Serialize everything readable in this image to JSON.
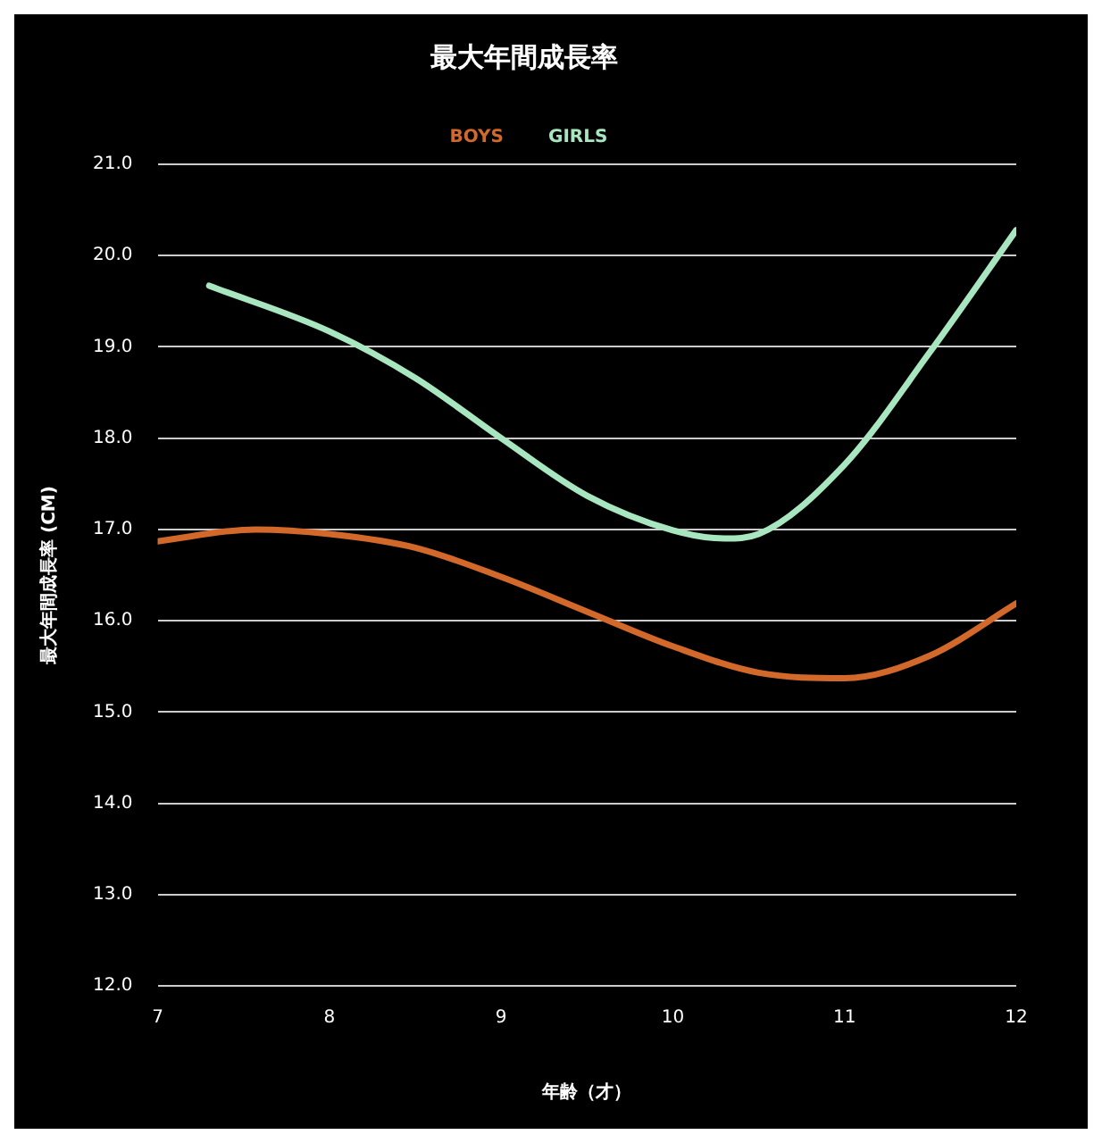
{
  "chart_data": {
    "type": "line",
    "title": "最大年間成長率",
    "xlabel": "年齢（才）",
    "ylabel": "最大年間成長率 (CM)",
    "series": [
      {
        "name": "BOYS",
        "color": "#d2692a",
        "x": [
          7,
          7.57,
          8,
          8.5,
          9,
          9.5,
          10,
          10.5,
          11,
          11.5,
          12
        ],
        "values": [
          16.87,
          17.0,
          16.95,
          16.8,
          16.48,
          16.1,
          15.72,
          15.43,
          15.37,
          15.62,
          16.19
        ]
      },
      {
        "name": "GIRLS",
        "color": "#a8e6c0",
        "x": [
          7.3,
          8,
          8.5,
          9,
          9.5,
          10,
          10.3,
          10.5,
          11,
          11.5,
          12
        ],
        "values": [
          19.67,
          19.17,
          18.66,
          18.0,
          17.37,
          16.99,
          16.9,
          16.95,
          17.71,
          18.95,
          20.28
        ]
      }
    ],
    "xlim": [
      7,
      12
    ],
    "xticks": [
      7,
      8,
      9,
      10,
      11,
      12
    ],
    "ylim": [
      12,
      21
    ],
    "yticks": [
      {
        "value": 12,
        "label": "12.0"
      },
      {
        "value": 13,
        "label": "13.0"
      },
      {
        "value": 14,
        "label": "14.0"
      },
      {
        "value": 15,
        "label": "15.0"
      },
      {
        "value": 16,
        "label": "16.0"
      },
      {
        "value": 17,
        "label": "17.0"
      },
      {
        "value": 18,
        "label": "18.0"
      },
      {
        "value": 19,
        "label": "19.0"
      },
      {
        "value": 20,
        "label": "20.0"
      },
      {
        "value": 21,
        "label": "21.0"
      }
    ],
    "grid": "y",
    "legend": "top",
    "marker": "none",
    "line_style": "solid"
  }
}
